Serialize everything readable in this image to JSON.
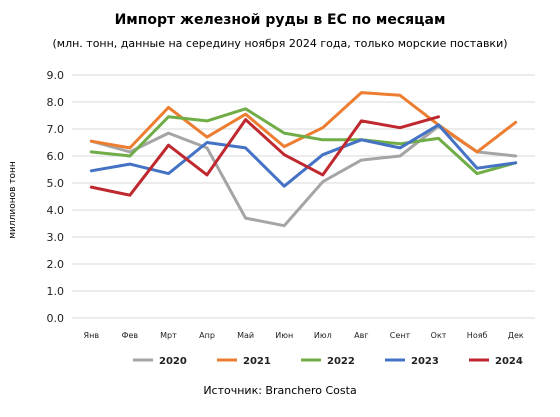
{
  "chart_data": {
    "type": "line",
    "title": "Импорт железной руды в ЕС по месяцам",
    "subtitle": "(млн. тонн, данные на середину ноября 2024 года, только морские поставки)",
    "xlabel": "",
    "ylabel": "миллионов тонн",
    "ylim": [
      0,
      9
    ],
    "yticks": [
      "0.0",
      "1.0",
      "2.0",
      "3.0",
      "4.0",
      "5.0",
      "6.0",
      "7.0",
      "8.0",
      "9.0"
    ],
    "grid": true,
    "legend_position": "bottom",
    "categories": [
      "Янв",
      "Фев",
      "Мрт",
      "Апр",
      "Май",
      "Июн",
      "Июл",
      "Авг",
      "Сент",
      "Окт",
      "Нояб",
      "Дек"
    ],
    "series": [
      {
        "name": "2020",
        "color": "#a5a5a5",
        "values": [
          6.55,
          6.15,
          6.85,
          6.3,
          3.7,
          3.42,
          5.05,
          5.85,
          6.0,
          7.1,
          6.15,
          6.0
        ]
      },
      {
        "name": "2021",
        "color": "#ed7d31",
        "values": [
          6.55,
          6.3,
          7.8,
          6.7,
          7.55,
          6.35,
          7.05,
          8.35,
          8.25,
          7.15,
          6.15,
          7.25
        ]
      },
      {
        "name": "2022",
        "color": "#70ad47",
        "values": [
          6.15,
          6.0,
          7.45,
          7.3,
          7.75,
          6.85,
          6.6,
          6.6,
          6.45,
          6.65,
          5.35,
          5.75
        ]
      },
      {
        "name": "2023",
        "color": "#4472c4",
        "values": [
          5.45,
          5.7,
          5.35,
          6.5,
          6.3,
          4.88,
          6.05,
          6.6,
          6.3,
          7.15,
          5.55,
          5.75
        ]
      },
      {
        "name": "2024",
        "color": "#c0282f",
        "values": [
          4.85,
          4.55,
          6.4,
          5.3,
          7.35,
          6.05,
          5.3,
          7.3,
          7.05,
          7.45,
          null,
          null
        ]
      }
    ],
    "source": "Источник: Branchero Costa"
  }
}
